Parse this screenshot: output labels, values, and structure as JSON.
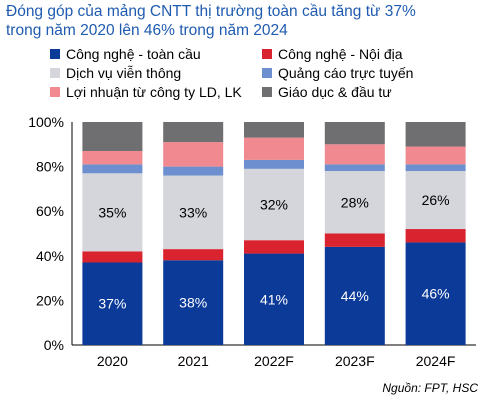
{
  "title": {
    "line1": "Đóng góp của mảng CNTT thị trường toàn cầu tăng từ 37%",
    "line2": "trong năm 2020 lên 46% trong năm 2024"
  },
  "source": "Nguồn: FPT, HSC",
  "chart_data": {
    "type": "bar",
    "stacked": true,
    "categories": [
      "2020",
      "2021",
      "2022F",
      "2023F",
      "2024F"
    ],
    "ylim": [
      0,
      100
    ],
    "ytick_labels": [
      "0%",
      "20%",
      "40%",
      "60%",
      "80%",
      "100%"
    ],
    "legend_position": "top",
    "series": [
      {
        "name": "Công nghệ - toàn cầu",
        "color": "#0b3a99",
        "values": [
          37,
          38,
          41,
          44,
          46
        ],
        "labels": [
          "37%",
          "38%",
          "41%",
          "44%",
          "46%"
        ]
      },
      {
        "name": "Công nghệ - Nội địa",
        "color": "#d9232e",
        "values": [
          5,
          5,
          6,
          6,
          6
        ]
      },
      {
        "name": "Dịch vụ viễn thông",
        "color": "#d4d6dc",
        "values": [
          35,
          33,
          32,
          28,
          26
        ],
        "labels": [
          "35%",
          "33%",
          "32%",
          "28%",
          "26%"
        ]
      },
      {
        "name": "Quảng cáo trực tuyến",
        "color": "#6d8fcf",
        "values": [
          4,
          4,
          4,
          3,
          3
        ]
      },
      {
        "name": "Lợi nhuận từ công ty LD, LK",
        "color": "#f08a90",
        "values": [
          6,
          11,
          10,
          9,
          8
        ]
      },
      {
        "name": "Giáo dục & đầu tư",
        "color": "#6f6f71",
        "values": [
          13,
          9,
          7,
          10,
          11
        ]
      }
    ]
  }
}
